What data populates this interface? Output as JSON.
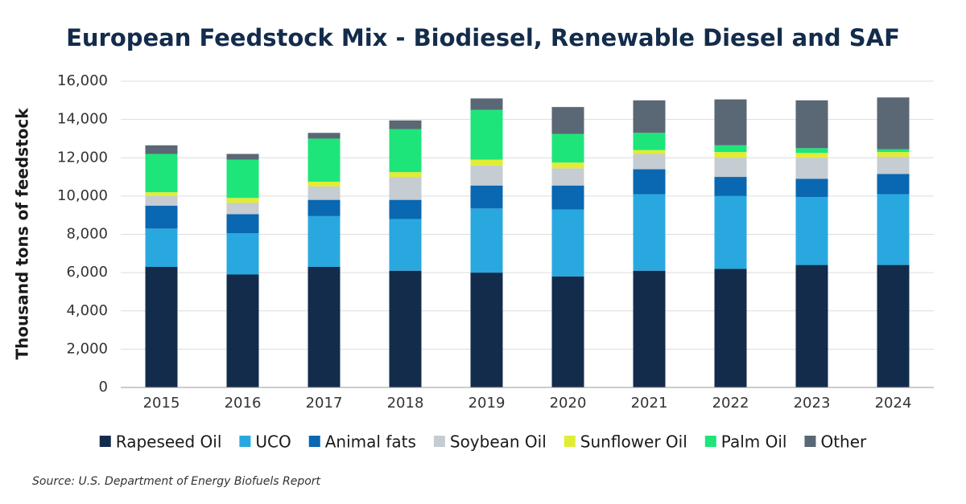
{
  "chart_data": {
    "type": "bar",
    "stacked": true,
    "title": "European Feedstock Mix - Biodiesel, Renewable Diesel and SAF",
    "y_label": "Thousand tons of feedstock",
    "source": "Source: U.S. Department of Energy Biofuels Report",
    "categories": [
      "2015",
      "2016",
      "2017",
      "2018",
      "2019",
      "2020",
      "2021",
      "2022",
      "2023",
      "2024"
    ],
    "series": [
      {
        "name": "Rapeseed Oil",
        "color": "#132c4c",
        "values": [
          6300,
          5900,
          6300,
          6100,
          6000,
          5800,
          6100,
          6200,
          6400,
          6400
        ]
      },
      {
        "name": "UCO",
        "color": "#29a8e0",
        "values": [
          2000,
          2150,
          2650,
          2700,
          3350,
          3500,
          4000,
          3800,
          3550,
          3700
        ]
      },
      {
        "name": "Animal fats",
        "color": "#0a67b1",
        "values": [
          1200,
          1000,
          850,
          1000,
          1200,
          1250,
          1300,
          1000,
          950,
          1050
        ]
      },
      {
        "name": "Soybean Oil",
        "color": "#c5ccd2",
        "values": [
          500,
          600,
          700,
          1200,
          1050,
          900,
          800,
          1000,
          1100,
          900
        ]
      },
      {
        "name": "Sunflower Oil",
        "color": "#e1ec34",
        "values": [
          200,
          250,
          250,
          250,
          300,
          300,
          200,
          300,
          250,
          250
        ]
      },
      {
        "name": "Palm Oil",
        "color": "#1ee57a",
        "values": [
          2000,
          2000,
          2250,
          2250,
          2600,
          1500,
          900,
          350,
          250,
          150
        ]
      },
      {
        "name": "Other",
        "color": "#5a6775",
        "values": [
          450,
          300,
          300,
          450,
          600,
          1400,
          1700,
          2400,
          2500,
          2700
        ]
      }
    ],
    "ylim": [
      0,
      16000
    ],
    "yticks": [
      0,
      {
        "value": 2000,
        "label": "2,000"
      },
      {
        "value": 4000,
        "label": "4,000"
      },
      {
        "value": 6000,
        "label": "6,000"
      },
      {
        "value": 8000,
        "label": "8,000"
      },
      {
        "value": 10000,
        "label": "10,000"
      },
      {
        "value": 12000,
        "label": "12,000"
      },
      {
        "value": 14000,
        "label": "14,000"
      },
      {
        "value": 16000,
        "label": "16,000"
      }
    ],
    "grid": true,
    "legend": "bottom"
  }
}
